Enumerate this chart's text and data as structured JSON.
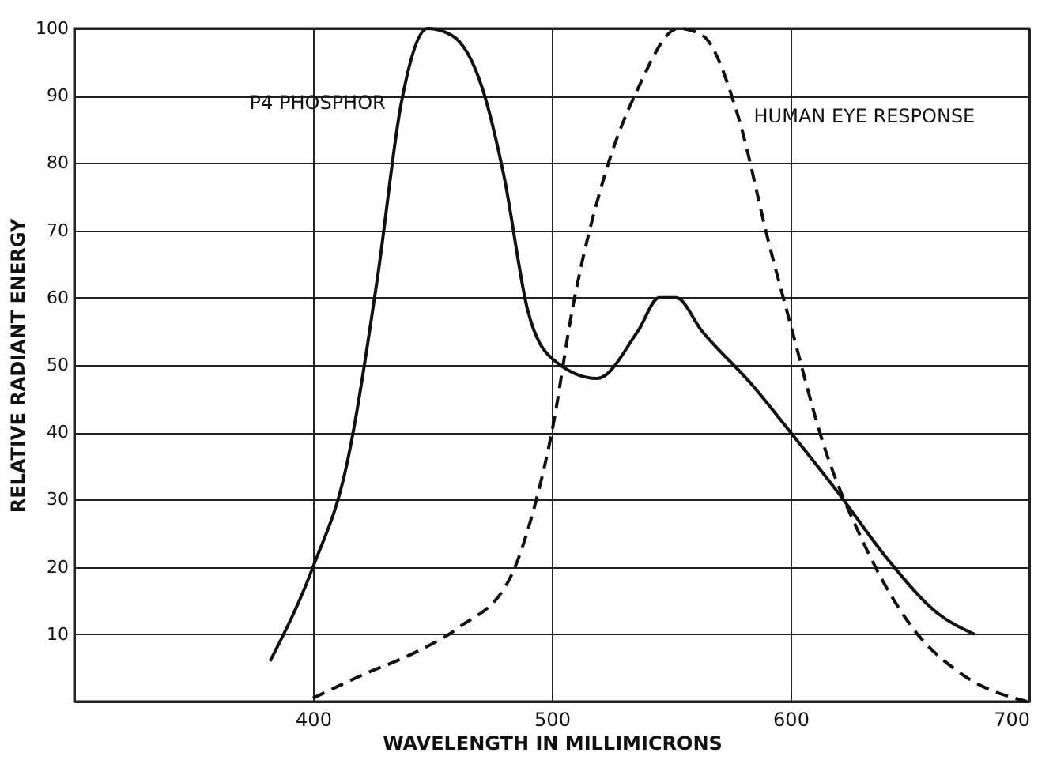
{
  "chart_data": {
    "type": "line",
    "xlabel": "WAVELENGTH IN MILLIMICRONS",
    "ylabel": "RELATIVE RADIANT ENERGY",
    "xlim": [
      300,
      700
    ],
    "ylim": [
      0,
      100
    ],
    "xticks": [
      400,
      500,
      600,
      700
    ],
    "yticks": [
      10,
      20,
      30,
      40,
      50,
      60,
      70,
      80,
      90,
      100
    ],
    "grid": true,
    "marker": "none",
    "series": [
      {
        "name": "P4 PHOSPHOR",
        "color": "#111111",
        "line_style": "solid",
        "x": [
          382,
          400,
          414,
          427,
          437,
          448,
          458,
          471,
          480,
          490,
          500,
          519,
          536,
          545,
          552,
          563,
          584,
          600,
          620,
          641,
          662,
          677
        ],
        "values": [
          6,
          20,
          35,
          63,
          89,
          100,
          99,
          91,
          78,
          58,
          51,
          48,
          55,
          60,
          60,
          55,
          47,
          40,
          31,
          21,
          13,
          10
        ]
      },
      {
        "name": "HUMAN EYE RESPONSE",
        "color": "#111111",
        "line_style": "dashed",
        "x": [
          400,
          421,
          441,
          461,
          482,
          492,
          500,
          509,
          522,
          536,
          553,
          563,
          578,
          591,
          600,
          614,
          630,
          651,
          672,
          699
        ],
        "values": [
          0.5,
          4,
          7,
          11,
          18,
          28,
          40,
          59,
          78,
          91,
          100,
          99,
          87,
          68,
          56,
          38,
          24,
          11,
          4,
          0
        ]
      }
    ]
  }
}
